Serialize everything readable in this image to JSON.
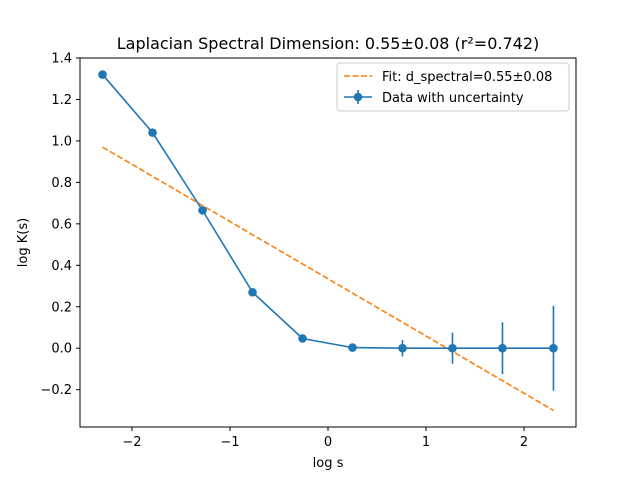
{
  "chart_data": {
    "type": "line",
    "title": "Laplacian Spectral Dimension: 0.55±0.08 (r²=0.742)",
    "xlabel": "log s",
    "ylabel": "log K(s)",
    "xlim": [
      -2.53,
      2.53
    ],
    "ylim": [
      -0.38,
      1.4
    ],
    "xticks": [
      -2,
      -1,
      0,
      1,
      2
    ],
    "xtick_labels": [
      "−2",
      "−1",
      "0",
      "1",
      "2"
    ],
    "yticks": [
      -0.2,
      0.0,
      0.2,
      0.4,
      0.6,
      0.8,
      1.0,
      1.2,
      1.4
    ],
    "ytick_labels": [
      "−0.2",
      "0.0",
      "0.2",
      "0.4",
      "0.6",
      "0.8",
      "1.0",
      "1.2",
      "1.4"
    ],
    "grid": false,
    "legend_position": "top-right",
    "series": [
      {
        "name": "Fit: d_spectral=0.55±0.08",
        "kind": "line",
        "style": "dashed",
        "color": "#ff7f0e",
        "x": [
          -2.3,
          2.3
        ],
        "y": [
          0.97,
          -0.3
        ]
      },
      {
        "name": "Data with uncertainty",
        "kind": "errorbar",
        "color": "#1f77b4",
        "x": [
          -2.3,
          -1.79,
          -1.28,
          -0.77,
          -0.26,
          0.25,
          0.76,
          1.27,
          1.78,
          2.3
        ],
        "y": [
          1.32,
          1.04,
          0.665,
          0.27,
          0.047,
          0.003,
          0.0,
          0.0,
          0.0,
          0.0
        ],
        "yerr": [
          0.0,
          0.0,
          0.0,
          0.0,
          0.0,
          0.02,
          0.04,
          0.075,
          0.125,
          0.205
        ]
      }
    ]
  }
}
